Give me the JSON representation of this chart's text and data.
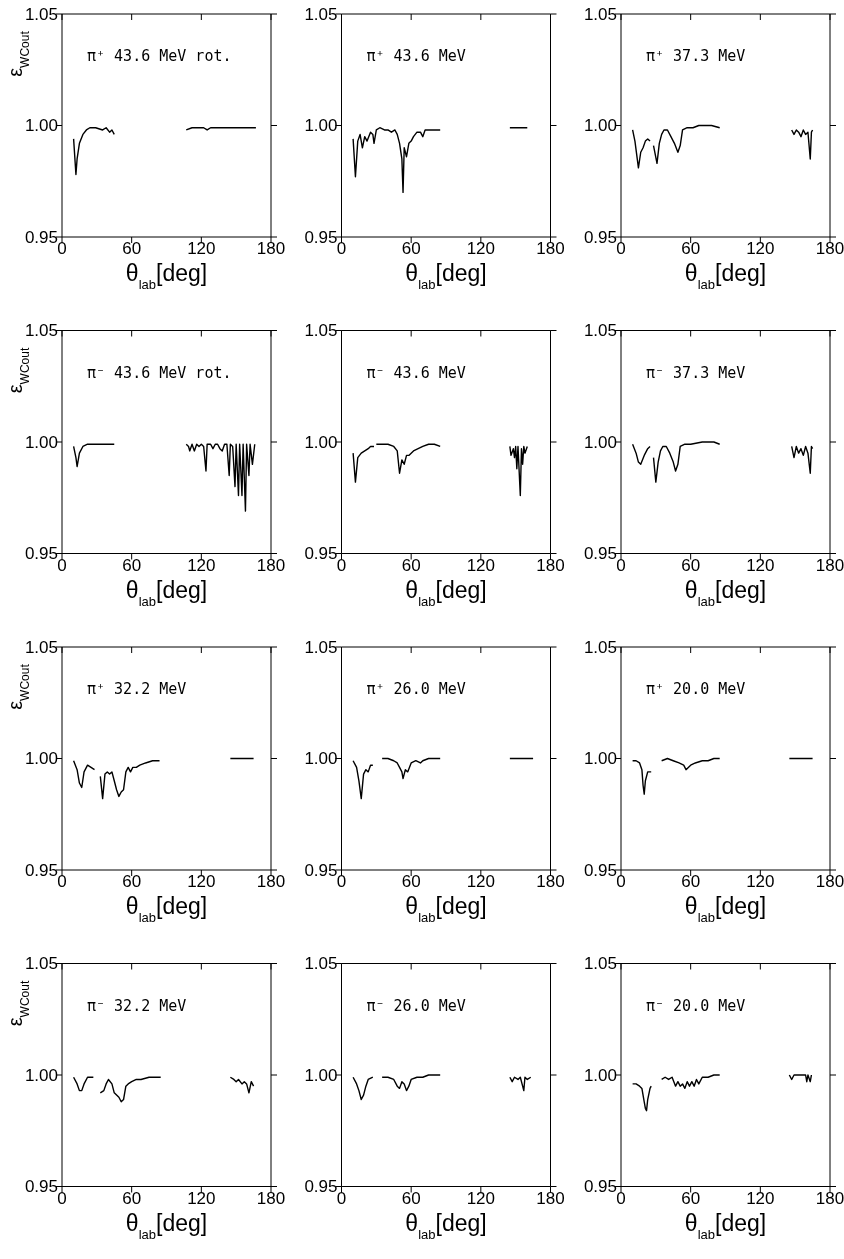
{
  "chart_data": [
    {
      "type": "line",
      "title": "π⁺ 43.6 MeV rot.",
      "xlabel": "θ$_{lab}$[deg]",
      "ylabel": "ε$_{WCout}$",
      "xlim": [
        0,
        180
      ],
      "xticks": [
        0,
        60,
        120,
        180
      ],
      "ylim": [
        0.95,
        1.05
      ],
      "yticks": [
        {
          "value": 0.95,
          "label": "0.95"
        },
        {
          "value": 1,
          "label": "1.00"
        },
        {
          "value": 1.05,
          "label": "1.05"
        }
      ],
      "color": "#000000",
      "line_style": "solid",
      "x": [
        10,
        12,
        13,
        15,
        18,
        21,
        24,
        27,
        29,
        35,
        38,
        41,
        43,
        45,
        75,
        107,
        112,
        117,
        122,
        125,
        128,
        133,
        138,
        143,
        148,
        153,
        158,
        163,
        167
      ],
      "values": [
        0.994,
        0.978,
        0.985,
        0.992,
        0.996,
        0.998,
        0.999,
        0.999,
        0.999,
        0.998,
        0.999,
        0.997,
        0.998,
        0.996,
        null,
        0.998,
        0.999,
        0.999,
        0.999,
        0.998,
        0.999,
        0.999,
        0.999,
        0.999,
        0.999,
        0.999,
        0.999,
        0.999,
        0.999
      ]
    },
    {
      "type": "line",
      "title": "π⁺ 43.6 MeV",
      "xlabel": "θ$_{lab}$[deg]",
      "xlim": [
        0,
        180
      ],
      "xticks": [
        0,
        60,
        120,
        180
      ],
      "ylim": [
        0.95,
        1.05
      ],
      "yticks": [
        {
          "value": 0.95,
          "label": "0.95"
        },
        {
          "value": 1,
          "label": "1.00"
        },
        {
          "value": 1.05,
          "label": "1.05"
        }
      ],
      "color": "#000000",
      "line_style": "solid",
      "x": [
        10,
        12,
        14,
        16,
        18,
        20,
        22,
        25,
        27,
        28,
        30,
        33,
        37,
        40,
        43,
        46,
        48,
        50,
        52,
        53,
        54,
        56,
        58,
        60,
        62,
        65,
        68,
        70,
        72,
        75,
        78,
        82,
        85,
        115,
        145,
        150,
        155,
        160
      ],
      "values": [
        0.994,
        0.977,
        0.993,
        0.996,
        0.99,
        0.995,
        0.993,
        0.997,
        0.996,
        0.992,
        0.998,
        0.999,
        0.998,
        0.998,
        0.997,
        0.998,
        0.996,
        0.992,
        0.985,
        0.97,
        0.99,
        0.986,
        0.992,
        0.993,
        0.995,
        0.997,
        0.997,
        0.995,
        0.998,
        0.998,
        0.998,
        0.998,
        0.998,
        null,
        0.999,
        0.999,
        0.999,
        0.999
      ]
    },
    {
      "type": "line",
      "title": "π⁺ 37.3 MeV",
      "xlabel": "θ$_{lab}$[deg]",
      "xlim": [
        0,
        180
      ],
      "xticks": [
        0,
        60,
        120,
        180
      ],
      "ylim": [
        0.95,
        1.05
      ],
      "yticks": [
        {
          "value": 0.95,
          "label": "0.95"
        },
        {
          "value": 1,
          "label": "1.00"
        },
        {
          "value": 1.05,
          "label": "1.05"
        }
      ],
      "color": "#000000",
      "line_style": "solid",
      "x": [
        10,
        12,
        14,
        15,
        17,
        19,
        21,
        23,
        25,
        27,
        28,
        31,
        33,
        35,
        37,
        40,
        43,
        46,
        49,
        51,
        53,
        57,
        62,
        67,
        72,
        78,
        85,
        115,
        147,
        149,
        151,
        153,
        155,
        157,
        159,
        161,
        163,
        164,
        165
      ],
      "values": [
        0.998,
        0.993,
        0.985,
        0.981,
        0.988,
        0.99,
        0.993,
        0.994,
        0.993,
        null,
        0.991,
        0.983,
        0.992,
        0.996,
        0.998,
        0.998,
        0.995,
        0.992,
        0.988,
        0.991,
        0.998,
        0.999,
        0.999,
        1.0,
        1.0,
        1.0,
        0.999,
        null,
        0.998,
        0.996,
        0.998,
        0.997,
        0.995,
        0.998,
        0.996,
        0.997,
        0.985,
        0.997,
        0.998
      ]
    },
    {
      "type": "line",
      "title": "π⁻ 43.6 MeV rot.",
      "xlabel": "θ$_{lab}$[deg]",
      "ylabel": "ε$_{WCout}$",
      "xlim": [
        0,
        180
      ],
      "xticks": [
        0,
        60,
        120,
        180
      ],
      "ylim": [
        0.95,
        1.05
      ],
      "yticks": [
        {
          "value": 0.95,
          "label": "0.95"
        },
        {
          "value": 1,
          "label": "1.00"
        },
        {
          "value": 1.05,
          "label": "1.05"
        }
      ],
      "color": "#000000",
      "line_style": "solid",
      "x": [
        10,
        12,
        13,
        15,
        18,
        22,
        26,
        29,
        35,
        38,
        41,
        45,
        75,
        107,
        109,
        110,
        112,
        114,
        116,
        118,
        120,
        122,
        124,
        125,
        128,
        130,
        132,
        134,
        136,
        138,
        140,
        142,
        144,
        145,
        147,
        149,
        150,
        152,
        153,
        155,
        156,
        158,
        159,
        161,
        162,
        164,
        166
      ],
      "values": [
        0.998,
        0.993,
        0.989,
        0.995,
        0.998,
        0.999,
        0.999,
        0.999,
        0.999,
        0.999,
        0.999,
        0.999,
        null,
        0.999,
        0.998,
        0.996,
        0.999,
        0.996,
        0.999,
        0.998,
        0.999,
        0.998,
        0.987,
        0.999,
        0.999,
        0.997,
        0.999,
        0.999,
        0.997,
        0.996,
        0.999,
        0.999,
        0.985,
        0.999,
        0.998,
        0.98,
        0.999,
        0.976,
        0.999,
        0.976,
        0.999,
        0.969,
        0.999,
        0.985,
        0.999,
        0.99,
        0.999
      ]
    },
    {
      "type": "line",
      "title": "π⁻ 43.6 MeV",
      "xlabel": "θ$_{lab}$[deg]",
      "xlim": [
        0,
        180
      ],
      "xticks": [
        0,
        60,
        120,
        180
      ],
      "ylim": [
        0.95,
        1.05
      ],
      "yticks": [
        {
          "value": 0.95,
          "label": "0.95"
        },
        {
          "value": 1,
          "label": "1.00"
        },
        {
          "value": 1.05,
          "label": "1.05"
        }
      ],
      "color": "#000000",
      "line_style": "solid",
      "x": [
        10,
        12,
        14,
        17,
        20,
        23,
        25,
        28,
        29,
        30,
        35,
        40,
        45,
        48,
        50,
        52,
        54,
        56,
        58,
        62,
        66,
        70,
        75,
        80,
        85,
        115,
        145,
        146,
        148,
        149,
        150,
        151,
        152,
        154,
        155,
        156,
        157,
        158,
        160
      ],
      "values": [
        0.995,
        0.982,
        0.993,
        0.995,
        0.996,
        0.997,
        0.998,
        0.998,
        null,
        0.999,
        0.999,
        0.999,
        0.998,
        0.996,
        0.986,
        0.992,
        0.99,
        0.994,
        0.994,
        0.996,
        0.997,
        0.998,
        0.999,
        0.999,
        0.998,
        null,
        0.998,
        0.994,
        0.997,
        0.993,
        0.998,
        0.988,
        0.998,
        0.976,
        0.997,
        0.99,
        0.998,
        0.995,
        0.998
      ]
    },
    {
      "type": "line",
      "title": "π⁻ 37.3 MeV",
      "xlabel": "θ$_{lab}$[deg]",
      "xlim": [
        0,
        180
      ],
      "xticks": [
        0,
        60,
        120,
        180
      ],
      "ylim": [
        0.95,
        1.05
      ],
      "yticks": [
        {
          "value": 0.95,
          "label": "0.95"
        },
        {
          "value": 1,
          "label": "1.00"
        },
        {
          "value": 1.05,
          "label": "1.05"
        }
      ],
      "color": "#000000",
      "line_style": "solid",
      "x": [
        10,
        13,
        15,
        17,
        20,
        23,
        25,
        27,
        28,
        30,
        32,
        34,
        36,
        39,
        42,
        45,
        47,
        49,
        51,
        55,
        60,
        70,
        80,
        85,
        115,
        147,
        149,
        151,
        153,
        155,
        157,
        159,
        161,
        163,
        164,
        165
      ],
      "values": [
        0.999,
        0.995,
        0.991,
        0.99,
        0.994,
        0.997,
        0.998,
        null,
        0.993,
        0.982,
        0.991,
        0.996,
        0.998,
        0.998,
        0.995,
        0.991,
        0.987,
        0.99,
        0.998,
        0.999,
        0.999,
        1.0,
        1.0,
        0.999,
        null,
        0.998,
        0.993,
        0.998,
        0.995,
        0.997,
        0.994,
        0.998,
        0.995,
        0.986,
        0.998,
        0.997
      ]
    },
    {
      "type": "line",
      "title": "π⁺ 32.2 MeV",
      "xlabel": "θ$_{lab}$[deg]",
      "ylabel": "ε$_{WCout}$",
      "xlim": [
        0,
        180
      ],
      "xticks": [
        0,
        60,
        120,
        180
      ],
      "ylim": [
        0.95,
        1.05
      ],
      "yticks": [
        {
          "value": 0.95,
          "label": "0.95"
        },
        {
          "value": 1,
          "label": "1.00"
        },
        {
          "value": 1.05,
          "label": "1.05"
        }
      ],
      "color": "#000000",
      "line_style": "solid",
      "x": [
        10,
        13,
        15,
        17,
        19,
        22,
        25,
        28,
        30,
        33,
        35,
        37,
        39,
        41,
        43,
        45,
        47,
        49,
        51,
        53,
        55,
        57,
        59,
        61,
        64,
        67,
        72,
        78,
        84,
        115,
        145,
        150,
        155,
        160,
        165
      ],
      "values": [
        0.999,
        0.995,
        0.989,
        0.987,
        0.994,
        0.997,
        0.996,
        0.995,
        null,
        0.992,
        0.982,
        0.993,
        0.994,
        0.993,
        0.994,
        0.99,
        0.986,
        0.983,
        0.985,
        0.986,
        0.994,
        0.996,
        0.994,
        0.996,
        0.996,
        0.997,
        0.998,
        0.999,
        0.999,
        null,
        1.0,
        1.0,
        1.0,
        1.0,
        1.0
      ]
    },
    {
      "type": "line",
      "title": "π⁺ 26.0 MeV",
      "xlabel": "θ$_{lab}$[deg]",
      "xlim": [
        0,
        180
      ],
      "xticks": [
        0,
        60,
        120,
        180
      ],
      "ylim": [
        0.95,
        1.05
      ],
      "yticks": [
        {
          "value": 0.95,
          "label": "0.95"
        },
        {
          "value": 1,
          "label": "1.00"
        },
        {
          "value": 1.05,
          "label": "1.05"
        }
      ],
      "color": "#000000",
      "line_style": "solid",
      "x": [
        10,
        13,
        15,
        17,
        19,
        21,
        23,
        25,
        27,
        31,
        35,
        40,
        45,
        48,
        50,
        52,
        53,
        55,
        57,
        60,
        64,
        68,
        70,
        75,
        85,
        115,
        145,
        150,
        155,
        160,
        165
      ],
      "values": [
        0.999,
        0.996,
        0.99,
        0.982,
        0.993,
        0.995,
        0.994,
        0.997,
        0.997,
        null,
        1.0,
        1.0,
        0.999,
        0.998,
        0.996,
        0.994,
        0.991,
        0.995,
        0.994,
        0.998,
        0.999,
        0.998,
        0.999,
        1.0,
        1.0,
        null,
        1.0,
        1.0,
        1.0,
        1.0,
        1.0
      ]
    },
    {
      "type": "line",
      "title": "π⁺ 20.0 MeV",
      "xlabel": "θ$_{lab}$[deg]",
      "xlim": [
        0,
        180
      ],
      "xticks": [
        0,
        60,
        120,
        180
      ],
      "ylim": [
        0.95,
        1.05
      ],
      "yticks": [
        {
          "value": 0.95,
          "label": "0.95"
        },
        {
          "value": 1,
          "label": "1.00"
        },
        {
          "value": 1.05,
          "label": "1.05"
        }
      ],
      "color": "#000000",
      "line_style": "solid",
      "x": [
        10,
        13,
        16,
        18,
        19,
        20,
        21,
        23,
        26,
        31,
        35,
        40,
        45,
        50,
        54,
        56,
        58,
        60,
        64,
        70,
        75,
        80,
        85,
        115,
        145,
        150,
        155,
        160,
        165
      ],
      "values": [
        0.999,
        0.999,
        0.998,
        0.995,
        0.988,
        0.984,
        0.99,
        0.994,
        0.994,
        null,
        0.999,
        1.0,
        0.999,
        0.998,
        0.997,
        0.995,
        0.996,
        0.997,
        0.998,
        0.999,
        0.999,
        1.0,
        1.0,
        null,
        1.0,
        1.0,
        1.0,
        1.0,
        1.0
      ]
    },
    {
      "type": "line",
      "title": "π⁻ 32.2 MeV",
      "xlabel": "θ$_{lab}$[deg]",
      "ylabel": "ε$_{WCout}$",
      "xlim": [
        0,
        180
      ],
      "xticks": [
        0,
        60,
        120,
        180
      ],
      "ylim": [
        0.95,
        1.05
      ],
      "yticks": [
        {
          "value": 0.95,
          "label": "0.95"
        },
        {
          "value": 1,
          "label": "1.00"
        },
        {
          "value": 1.05,
          "label": "1.05"
        }
      ],
      "color": "#000000",
      "line_style": "solid",
      "x": [
        10,
        13,
        15,
        17,
        19,
        22,
        25,
        27,
        30,
        33,
        36,
        38,
        40,
        43,
        45,
        47,
        49,
        51,
        53,
        55,
        57,
        60,
        64,
        68,
        75,
        85,
        115,
        145,
        148,
        150,
        152,
        155,
        157,
        159,
        161,
        163,
        165
      ],
      "values": [
        0.999,
        0.996,
        0.993,
        0.993,
        0.996,
        0.999,
        0.999,
        0.999,
        null,
        0.992,
        0.993,
        0.996,
        0.998,
        0.996,
        0.992,
        0.991,
        0.99,
        0.988,
        0.989,
        0.995,
        0.996,
        0.997,
        0.998,
        0.998,
        0.999,
        0.999,
        null,
        0.999,
        0.998,
        0.997,
        0.998,
        0.996,
        0.997,
        0.996,
        0.992,
        0.997,
        0.995
      ]
    },
    {
      "type": "line",
      "title": "π⁻ 26.0 MeV",
      "xlabel": "θ$_{lab}$[deg]",
      "xlim": [
        0,
        180
      ],
      "xticks": [
        0,
        60,
        120,
        180
      ],
      "ylim": [
        0.95,
        1.05
      ],
      "yticks": [
        {
          "value": 0.95,
          "label": "0.95"
        },
        {
          "value": 1,
          "label": "1.00"
        },
        {
          "value": 1.05,
          "label": "1.05"
        }
      ],
      "color": "#000000",
      "line_style": "solid",
      "x": [
        10,
        13,
        15,
        17,
        19,
        21,
        23,
        27,
        31,
        35,
        40,
        45,
        48,
        50,
        52,
        54,
        56,
        58,
        60,
        65,
        70,
        75,
        85,
        115,
        145,
        147,
        149,
        152,
        154,
        156,
        157,
        158,
        160,
        163
      ],
      "values": [
        0.999,
        0.996,
        0.993,
        0.989,
        0.991,
        0.995,
        0.998,
        0.999,
        null,
        0.999,
        0.999,
        0.998,
        0.995,
        0.994,
        0.997,
        0.996,
        0.993,
        0.995,
        0.998,
        0.999,
        0.999,
        1.0,
        1.0,
        null,
        0.999,
        0.997,
        0.999,
        0.998,
        0.999,
        0.995,
        0.993,
        0.999,
        0.998,
        0.999
      ]
    },
    {
      "type": "line",
      "title": "π⁻ 20.0 MeV",
      "xlabel": "θ$_{lab}$[deg]",
      "xlim": [
        0,
        180
      ],
      "xticks": [
        0,
        60,
        120,
        180
      ],
      "ylim": [
        0.95,
        1.05
      ],
      "yticks": [
        {
          "value": 0.95,
          "label": "0.95"
        },
        {
          "value": 1,
          "label": "1.00"
        },
        {
          "value": 1.05,
          "label": "1.05"
        }
      ],
      "color": "#000000",
      "line_style": "solid",
      "x": [
        10,
        13,
        16,
        18,
        20,
        21,
        22,
        23,
        25,
        26,
        31,
        35,
        38,
        41,
        44,
        47,
        49,
        51,
        53,
        55,
        57,
        59,
        61,
        63,
        65,
        67,
        70,
        75,
        80,
        85,
        115,
        145,
        147,
        149,
        155,
        159,
        160,
        161,
        163,
        164
      ],
      "values": [
        0.996,
        0.996,
        0.995,
        0.994,
        0.988,
        0.985,
        0.984,
        0.989,
        0.994,
        0.995,
        null,
        0.998,
        0.999,
        0.998,
        0.999,
        0.995,
        0.997,
        0.995,
        0.996,
        0.994,
        0.997,
        0.995,
        0.997,
        0.995,
        0.998,
        0.996,
        0.999,
        0.999,
        1.0,
        1.0,
        null,
        1.0,
        0.998,
        1.0,
        1.0,
        1.0,
        0.997,
        1.0,
        0.997,
        1.0
      ]
    }
  ]
}
